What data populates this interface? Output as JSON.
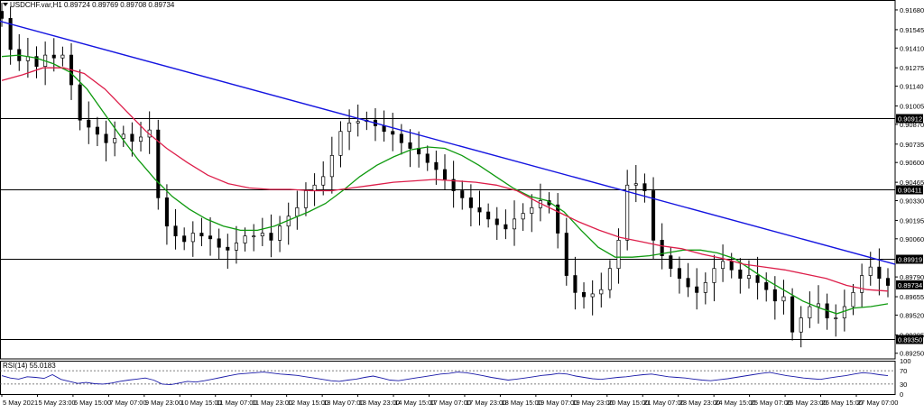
{
  "header": {
    "symbol_info": "USDCHF.var,H1  0.89724 0.89769 0.89708 0.89734"
  },
  "chart_data": [
    {
      "type": "candlestick",
      "title": "USDCHF.var,H1",
      "ohlc_readout": {
        "open": 0.89724,
        "high": 0.89769,
        "low": 0.89708,
        "close": 0.89734
      },
      "y_ticks": [
        0.9168,
        0.9154,
        0.9141,
        0.9127,
        0.9114,
        0.91,
        0.9087,
        0.9073,
        0.906,
        0.9046,
        0.9033,
        0.9019,
        0.9006,
        0.8979,
        0.8965,
        0.8952,
        0.8938,
        0.8925
      ],
      "y_tick_labels": [
        "0.91680",
        "0.91545",
        "0.91410",
        "0.91275",
        "0.91140",
        "0.91005",
        "0.90870",
        "0.90735",
        "0.90600",
        "0.90465",
        "0.90330",
        "0.90195",
        "0.90060",
        "0.89790",
        "0.89655",
        "0.89520",
        "0.89385",
        "0.89250"
      ],
      "ylim": [
        0.8921,
        0.9175
      ],
      "x_labels": [
        "5 May 2021",
        "5 May 23:00",
        "6 May 15:00",
        "7 May 07:00",
        "9 May 23:00",
        "10 May 15:00",
        "11 May 07:00",
        "11 May 23:00",
        "12 May 15:00",
        "13 May 07:00",
        "13 May 23:00",
        "14 May 15:00",
        "17 May 07:00",
        "17 May 23:00",
        "18 May 15:00",
        "19 May 07:00",
        "19 May 23:00",
        "20 May 15:00",
        "21 May 07:00",
        "23 May 23:00",
        "24 May 15:00",
        "25 May 07:00",
        "25 May 23:00",
        "26 May 15:00",
        "27 May 07:00"
      ],
      "horizontal_levels": [
        {
          "value": 0.90912,
          "label": "0.90912"
        },
        {
          "value": 0.90411,
          "label": "0.90411"
        },
        {
          "value": 0.89919,
          "label": "0.89919"
        },
        {
          "value": 0.8935,
          "label": "0.89350"
        }
      ],
      "current_price": {
        "value": 0.89734,
        "label": "0.89734"
      },
      "trendline": {
        "start_value": 0.916,
        "end_value": 0.8988,
        "color": "#1515e0"
      },
      "candle_color": "#000000",
      "series": [
        {
          "kind": "close",
          "values": [
            0.9162,
            0.914,
            0.9132,
            0.9135,
            0.9128,
            0.9136,
            0.9134,
            0.9136,
            0.9115,
            0.909,
            0.9085,
            0.908,
            0.9074,
            0.9077,
            0.908,
            0.9075,
            0.9078,
            0.9083,
            0.9035,
            0.9015,
            0.9008,
            0.9004,
            0.901,
            0.9008,
            0.9006,
            0.9,
            0.8998,
            0.9003,
            0.9008,
            0.9008,
            0.901,
            0.9005,
            0.9015,
            0.9022,
            0.9028,
            0.904,
            0.9044,
            0.905,
            0.9065,
            0.9082,
            0.9088,
            0.9089,
            0.909,
            0.9086,
            0.9082,
            0.908,
            0.9074,
            0.907,
            0.9066,
            0.906,
            0.9055,
            0.9048,
            0.904,
            0.9035,
            0.9028,
            0.9025,
            0.902,
            0.9016,
            0.9013,
            0.902,
            0.9024,
            0.9028,
            0.9033,
            0.903,
            0.901,
            0.898,
            0.8968,
            0.8965,
            0.8967,
            0.897,
            0.8985,
            0.9005,
            0.9044,
            0.9045,
            0.904,
            0.9005,
            0.8994,
            0.8985,
            0.8978,
            0.8972,
            0.8968,
            0.8975,
            0.8985,
            0.899,
            0.8984,
            0.8978,
            0.898,
            0.8975,
            0.897,
            0.8962,
            0.8965,
            0.894,
            0.895,
            0.8958,
            0.896,
            0.895,
            0.895,
            0.8958,
            0.8968,
            0.898,
            0.8986,
            0.8978,
            0.8973
          ]
        },
        {
          "kind": "moving-average",
          "color": "#0f9a0f",
          "values": [
            0.9135,
            0.9136,
            0.9134,
            0.913,
            0.9124,
            0.9112,
            0.9095,
            0.9078,
            0.9062,
            0.9048,
            0.9036,
            0.9027,
            0.902,
            0.9015,
            0.9012,
            0.9012,
            0.9015,
            0.902,
            0.9025,
            0.9031,
            0.904,
            0.905,
            0.9058,
            0.9064,
            0.9069,
            0.9071,
            0.907,
            0.9065,
            0.9058,
            0.905,
            0.9042,
            0.9036,
            0.9033,
            0.9025,
            0.9012,
            0.9,
            0.8993,
            0.8993,
            0.8994,
            0.8996,
            0.8998,
            0.8998,
            0.8996,
            0.8992,
            0.8984,
            0.8976,
            0.8969,
            0.8962,
            0.8957,
            0.8953,
            0.8957,
            0.8958,
            0.896
          ]
        },
        {
          "kind": "moving-average",
          "color": "#dd1e4a",
          "values": [
            0.9118,
            0.9122,
            0.9127,
            0.9127,
            0.9123,
            0.9112,
            0.9097,
            0.9082,
            0.907,
            0.906,
            0.9051,
            0.9045,
            0.9042,
            0.9041,
            0.9041,
            0.904,
            0.904,
            0.9042,
            0.9044,
            0.9046,
            0.9047,
            0.9048,
            0.9047,
            0.9046,
            0.9044,
            0.904,
            0.9032,
            0.9025,
            0.9018,
            0.9012,
            0.9007,
            0.9004,
            0.9001,
            0.8999,
            0.8995,
            0.8992,
            0.8988,
            0.8986,
            0.8984,
            0.8981,
            0.8978,
            0.8973,
            0.897,
            0.8969
          ]
        }
      ]
    },
    {
      "type": "line",
      "title": "RSI(14) 55.0183",
      "label": "RSI(14) 55.0183",
      "ylim": [
        0,
        100
      ],
      "y_ticks": [
        100,
        70,
        30,
        0
      ],
      "y_tick_labels": [
        "100",
        "70",
        "30",
        "0"
      ],
      "levels": [
        70,
        30
      ],
      "color": "#1a1aa8",
      "values": [
        55,
        48,
        45,
        52,
        50,
        47,
        58,
        44,
        38,
        32,
        35,
        31,
        30,
        33,
        38,
        42,
        45,
        48,
        42,
        30,
        28,
        33,
        38,
        36,
        40,
        45,
        50,
        55,
        60,
        62,
        64,
        66,
        63,
        60,
        58,
        56,
        52,
        48,
        44,
        40,
        38,
        42,
        45,
        50,
        54,
        48,
        42,
        40,
        44,
        48,
        52,
        56,
        60,
        62,
        66,
        64,
        60,
        55,
        50,
        46,
        42,
        45,
        48,
        52,
        56,
        58,
        62,
        60,
        54,
        50,
        46,
        44,
        47,
        50,
        52,
        55,
        58,
        60,
        56,
        52,
        50,
        48,
        45,
        42,
        40,
        43,
        46,
        50,
        54,
        58,
        62,
        65,
        60,
        55,
        52,
        48,
        46,
        44,
        48,
        52,
        55,
        60,
        64,
        62,
        58,
        55
      ]
    }
  ]
}
